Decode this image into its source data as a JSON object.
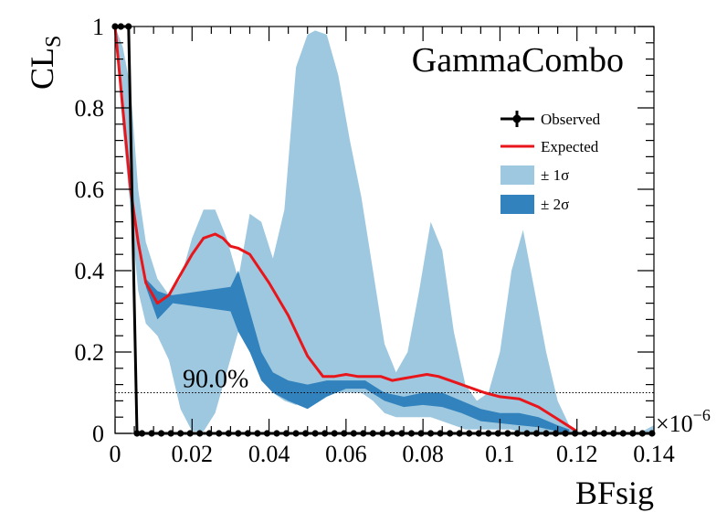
{
  "chart_data": {
    "type": "line",
    "title": "",
    "watermark": "GammaCombo",
    "xlabel": "BFsig",
    "ylabel_main": "CL",
    "ylabel_sub": "S",
    "x_multiplier_base": "×10",
    "x_multiplier_exp": "−6",
    "xlim": [
      0,
      0.14
    ],
    "ylim": [
      0,
      1
    ],
    "x_ticks": [
      0,
      0.02,
      0.04,
      0.06,
      0.08,
      0.1,
      0.12,
      0.14
    ],
    "x_tick_labels": [
      "0",
      "0.02",
      "0.04",
      "0.06",
      "0.08",
      "0.1",
      "0.12",
      "0.14"
    ],
    "y_ticks": [
      0,
      0.2,
      0.4,
      0.6,
      0.8,
      1
    ],
    "y_tick_labels": [
      "0",
      "0.2",
      "0.4",
      "0.6",
      "0.8",
      "1"
    ],
    "threshold": {
      "y": 0.1,
      "label": "90.0%"
    },
    "legend": {
      "position": "top-right",
      "entries": [
        {
          "key": "observed",
          "label": "Observed"
        },
        {
          "key": "expected",
          "label": "Expected"
        },
        {
          "key": "band1",
          "label": "± 1σ"
        },
        {
          "key": "band2",
          "label": "± 2σ"
        }
      ]
    },
    "colors": {
      "observed": "#000000",
      "expected": "#e8161b",
      "band1": "#9ec8e0",
      "band2": "#3182bd"
    },
    "series": {
      "observed": {
        "x": [
          0,
          0.0015,
          0.0035,
          0.0057,
          0.007,
          0.0095,
          0.012,
          0.0145,
          0.017,
          0.0195,
          0.022,
          0.0245,
          0.027,
          0.0295,
          0.032,
          0.0345,
          0.037,
          0.0395,
          0.042,
          0.0445,
          0.047,
          0.0495,
          0.052,
          0.0545,
          0.057,
          0.0595,
          0.062,
          0.0645,
          0.067,
          0.0695,
          0.072,
          0.0745,
          0.077,
          0.0795,
          0.082,
          0.0845,
          0.087,
          0.0895,
          0.092,
          0.0945,
          0.097,
          0.0995,
          0.102,
          0.1045,
          0.107,
          0.1095,
          0.112,
          0.1145,
          0.117,
          0.1195,
          0.122,
          0.1245,
          0.127,
          0.1295,
          0.132,
          0.1345,
          0.137,
          0.1395
        ],
        "y": [
          1,
          1,
          1,
          0,
          0,
          0,
          0,
          0,
          0,
          0,
          0,
          0,
          0,
          0,
          0,
          0,
          0,
          0,
          0,
          0,
          0,
          0,
          0,
          0,
          0,
          0,
          0,
          0,
          0,
          0,
          0,
          0,
          0,
          0,
          0,
          0,
          0,
          0,
          0,
          0,
          0,
          0,
          0,
          0,
          0,
          0,
          0,
          0,
          0,
          0,
          0,
          0,
          0,
          0,
          0,
          0,
          0,
          0
        ]
      },
      "expected": {
        "x": [
          0,
          0.002,
          0.004,
          0.006,
          0.008,
          0.011,
          0.014,
          0.017,
          0.02,
          0.023,
          0.026,
          0.028,
          0.03,
          0.032,
          0.035,
          0.04,
          0.045,
          0.05,
          0.054,
          0.057,
          0.06,
          0.063,
          0.066,
          0.069,
          0.072,
          0.075,
          0.078,
          0.081,
          0.084,
          0.087,
          0.09,
          0.093,
          0.096,
          0.1,
          0.105,
          0.11,
          0.115,
          0.12
        ],
        "y": [
          1,
          0.8,
          0.6,
          0.47,
          0.37,
          0.32,
          0.34,
          0.39,
          0.44,
          0.48,
          0.49,
          0.48,
          0.46,
          0.455,
          0.44,
          0.37,
          0.29,
          0.19,
          0.14,
          0.14,
          0.145,
          0.14,
          0.14,
          0.14,
          0.13,
          0.135,
          0.14,
          0.145,
          0.14,
          0.13,
          0.12,
          0.11,
          0.1,
          0.09,
          0.085,
          0.065,
          0.035,
          0.005
        ]
      }
    },
    "bands": {
      "band1": {
        "x": [
          0,
          0.002,
          0.004,
          0.006,
          0.008,
          0.011,
          0.014,
          0.017,
          0.02,
          0.023,
          0.026,
          0.029,
          0.032,
          0.035,
          0.038,
          0.041,
          0.044,
          0.047,
          0.05,
          0.052,
          0.055,
          0.058,
          0.061,
          0.064,
          0.067,
          0.07,
          0.073,
          0.076,
          0.079,
          0.082,
          0.085,
          0.088,
          0.091,
          0.094,
          0.097,
          0.1,
          0.103,
          0.106,
          0.109,
          0.112,
          0.115,
          0.118,
          0.121,
          0.124,
          0.127,
          0.13,
          0.133,
          0.136,
          0.14
        ],
        "upper": [
          1,
          0.95,
          0.85,
          0.6,
          0.47,
          0.38,
          0.34,
          0.38,
          0.48,
          0.55,
          0.55,
          0.48,
          0.38,
          0.54,
          0.52,
          0.43,
          0.55,
          0.9,
          0.98,
          0.99,
          0.98,
          0.88,
          0.72,
          0.58,
          0.4,
          0.22,
          0.15,
          0.2,
          0.35,
          0.52,
          0.45,
          0.25,
          0.12,
          0.08,
          0.1,
          0.2,
          0.4,
          0.5,
          0.35,
          0.2,
          0.08,
          0.02,
          0,
          0,
          0,
          0,
          0,
          0,
          0.02
        ],
        "lower": [
          1,
          0.75,
          0.55,
          0.35,
          0.27,
          0.24,
          0.18,
          0.06,
          0.005,
          0.005,
          0.05,
          0.15,
          0.25,
          0.2,
          0.15,
          0.1,
          0.08,
          0.07,
          0.08,
          0.09,
          0.1,
          0.1,
          0.1,
          0.1,
          0.08,
          0.05,
          0.04,
          0.04,
          0.04,
          0.04,
          0.03,
          0.02,
          0.01,
          0.01,
          0.01,
          0.01,
          0.01,
          0,
          0,
          0,
          0,
          0,
          0,
          0,
          0,
          0,
          0,
          0,
          0
        ]
      },
      "band2": {
        "x": [
          0.008,
          0.011,
          0.014,
          0.015,
          0.03,
          0.032,
          0.035,
          0.038,
          0.041,
          0.045,
          0.05,
          0.055,
          0.06,
          0.065,
          0.07,
          0.075,
          0.08,
          0.085,
          0.09,
          0.095,
          0.1,
          0.105,
          0.11,
          0.115,
          0.118
        ],
        "upper": [
          0.38,
          0.35,
          0.34,
          0.34,
          0.36,
          0.4,
          0.3,
          0.2,
          0.15,
          0.13,
          0.12,
          0.13,
          0.13,
          0.13,
          0.1,
          0.09,
          0.1,
          0.1,
          0.08,
          0.06,
          0.05,
          0.05,
          0.04,
          0.02,
          0.01
        ],
        "lower": [
          0.36,
          0.28,
          0.31,
          0.32,
          0.3,
          0.25,
          0.2,
          0.13,
          0.1,
          0.08,
          0.06,
          0.09,
          0.11,
          0.11,
          0.08,
          0.065,
          0.07,
          0.065,
          0.05,
          0.03,
          0.025,
          0.02,
          0.015,
          0.005,
          0
        ]
      }
    }
  }
}
